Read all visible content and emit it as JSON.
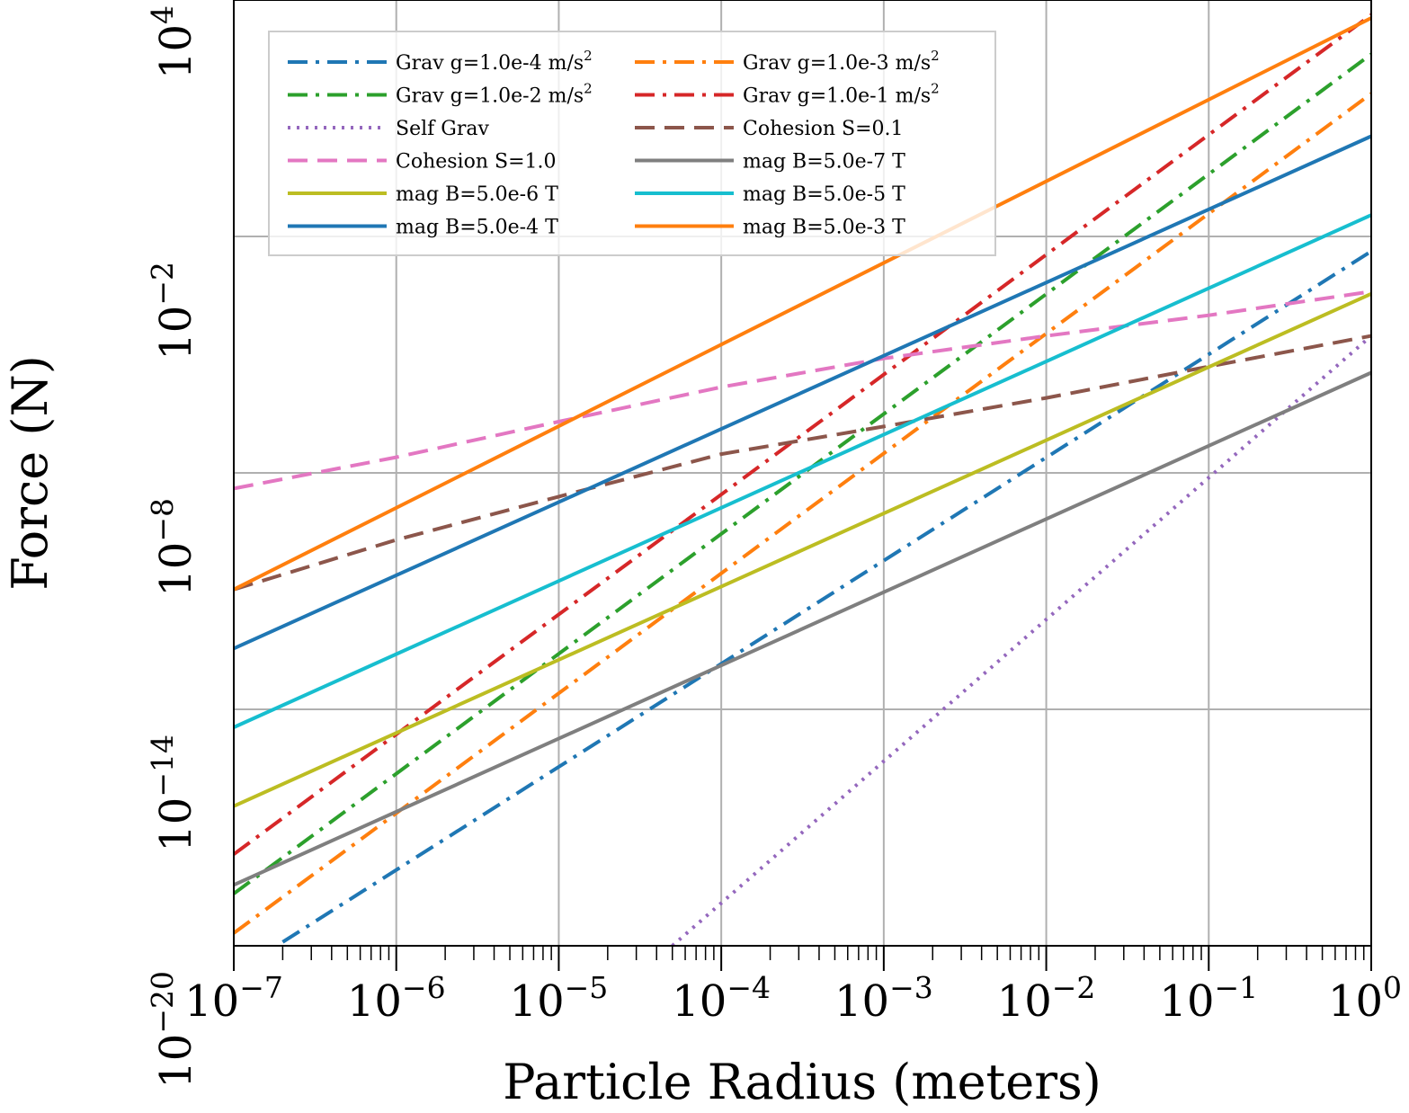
{
  "chart_data": {
    "type": "line",
    "title": "",
    "xlabel": "Particle Radius (meters)",
    "ylabel": "Force (N)",
    "xscale": "log",
    "yscale": "log",
    "xlim": [
      1e-07,
      1
    ],
    "ylim": [
      1e-20,
      10000.0
    ],
    "grid": true,
    "legend_position": "top-left",
    "legend_columns": 2,
    "x_ticks": [
      {
        "base": "10",
        "exp": "−7"
      },
      {
        "base": "10",
        "exp": "−6"
      },
      {
        "base": "10",
        "exp": "−5"
      },
      {
        "base": "10",
        "exp": "−4"
      },
      {
        "base": "10",
        "exp": "−3"
      },
      {
        "base": "10",
        "exp": "−2"
      },
      {
        "base": "10",
        "exp": "−1"
      },
      {
        "base": "10",
        "exp": "0"
      }
    ],
    "y_ticks": [
      {
        "value": 1e-20,
        "base": "10",
        "exp": "−20"
      },
      {
        "value": 1e-14,
        "base": "10",
        "exp": "−14"
      },
      {
        "value": 1e-08,
        "base": "10",
        "exp": "−8"
      },
      {
        "value": 0.01,
        "base": "10",
        "exp": "−2"
      },
      {
        "value": 10000.0,
        "base": "10",
        "exp": "4"
      }
    ],
    "series": [
      {
        "name": "Grav g=1.0e-4 m/s",
        "sup": "2",
        "color": "#1f77b4",
        "style": "dashdot",
        "x": [
          2e-07,
          1
        ],
        "y": [
          1.25e-20,
          0.0042
        ]
      },
      {
        "name": "Grav g=1.0e-3 m/s",
        "sup": "2",
        "color": "#ff7f0e",
        "style": "dashdot",
        "x": [
          1e-07,
          1
        ],
        "y": [
          2.1e-20,
          42.0
        ]
      },
      {
        "name": "Grav g=1.0e-2 m/s",
        "sup": "2",
        "color": "#2ca02c",
        "style": "dashdot",
        "x": [
          1e-07,
          1
        ],
        "y": [
          2.1e-19,
          420.0
        ]
      },
      {
        "name": "Grav g=1.0e-1 m/s",
        "sup": "2",
        "color": "#d62728",
        "style": "dashdot",
        "x": [
          1e-07,
          1
        ],
        "y": [
          2.1e-18,
          4200.0
        ]
      },
      {
        "name": "Self Grav",
        "color": "#9467bd",
        "style": "dotted",
        "x": [
          5e-05,
          1
        ],
        "y": [
          1e-20,
          3e-05
        ]
      },
      {
        "name": "Cohesion S=0.1",
        "color": "#8c564b",
        "style": "dashed",
        "x": [
          1e-07,
          1e-06,
          1e-05,
          0.0001,
          0.001,
          0.01,
          0.1,
          1
        ],
        "y": [
          1.1e-11,
          2e-10,
          2.5e-09,
          3e-08,
          1.5e-07,
          8e-07,
          5e-06,
          3e-05
        ]
      },
      {
        "name": "Cohesion S=1.0",
        "color": "#e377c2",
        "style": "dashed",
        "x": [
          1e-07,
          1e-06,
          1e-05,
          0.0001,
          0.001,
          0.01,
          0.1,
          1
        ],
        "y": [
          4e-09,
          2.5e-08,
          2e-07,
          1.5e-06,
          8e-06,
          3e-05,
          0.0001,
          0.0004
        ]
      },
      {
        "name": "mag B=5.0e-7 T",
        "color": "#7f7f7f",
        "style": "solid",
        "x": [
          1e-07,
          1
        ],
        "y": [
          3.5e-19,
          3.5e-06
        ]
      },
      {
        "name": "mag B=5.0e-6 T",
        "color": "#bcbd22",
        "style": "solid",
        "x": [
          1e-07,
          1
        ],
        "y": [
          3.5e-17,
          0.00035
        ]
      },
      {
        "name": "mag B=5.0e-5 T",
        "color": "#17becf",
        "style": "solid",
        "x": [
          1e-07,
          1
        ],
        "y": [
          3.5e-15,
          0.035
        ]
      },
      {
        "name": "mag B=5.0e-4 T",
        "color": "#1f77b4",
        "style": "solid",
        "x": [
          1e-07,
          1
        ],
        "y": [
          3.5e-13,
          3.5
        ]
      },
      {
        "name": "mag B=5.0e-3 T",
        "color": "#ff7f0e",
        "style": "solid",
        "x": [
          1e-07,
          1
        ],
        "y": [
          1.1e-11,
          3500.0
        ]
      }
    ]
  }
}
